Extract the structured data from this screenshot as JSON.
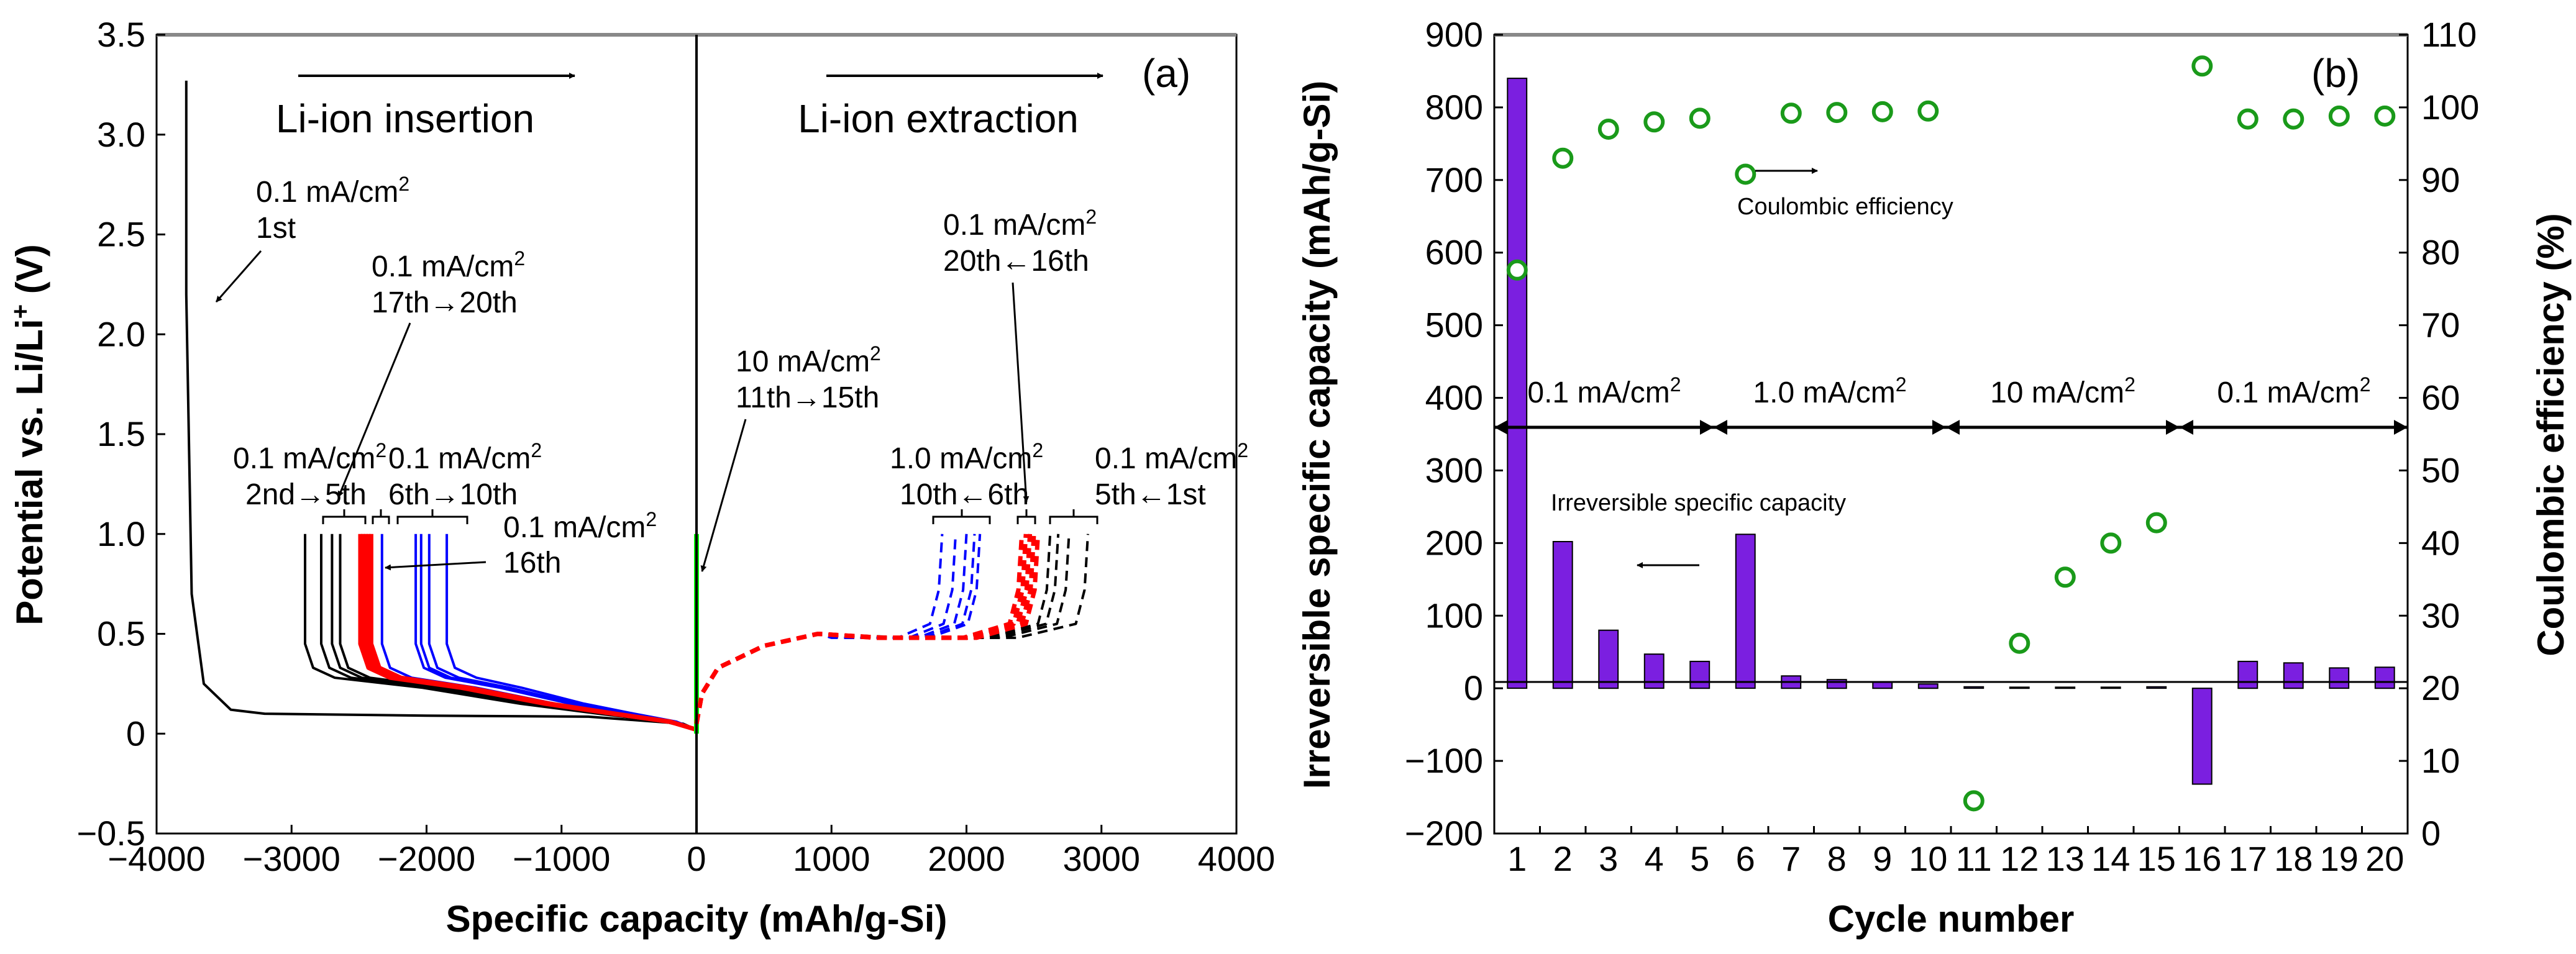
{
  "chart_data": [
    {
      "type": "line",
      "panel_label": "(a)",
      "xlabel": "Specific capacity (mAh/g-Si)",
      "ylabel": "Potential vs. Li/Li",
      "ylabel_sup": "+",
      "ylabel_unit": " (V)",
      "xlim": [
        -4000,
        4000
      ],
      "ylim": [
        -0.5,
        3.5
      ],
      "x_ticks": [
        -4000,
        -3000,
        -2000,
        -1000,
        0,
        1000,
        2000,
        3000,
        4000
      ],
      "x_tick_labels": [
        "−4000",
        "−3000",
        "−2000",
        "−1000",
        "0",
        "1000",
        "2000",
        "3000",
        "4000"
      ],
      "y_ticks": [
        -0.5,
        0,
        0.5,
        1.0,
        1.5,
        2.0,
        2.5,
        3.0,
        3.5
      ],
      "y_tick_labels": [
        "−0.5",
        "0",
        "0.5",
        "1.0",
        "1.5",
        "2.0",
        "2.5",
        "3.0",
        "3.5"
      ],
      "headers": {
        "insertion": "Li-ion insertion",
        "extraction": "Li-ion extraction"
      },
      "annotations": {
        "first": [
          "0.1 mA/cm",
          "1st"
        ],
        "c17_20": [
          "0.1 mA/cm",
          "17th→20th"
        ],
        "c2_5": [
          "0.1 mA/cm",
          "2nd→5th"
        ],
        "c6_10": [
          "0.1 mA/cm",
          "6th→10th"
        ],
        "c16": [
          "0.1 mA/cm",
          "16th"
        ],
        "c11_15": [
          "10 mA/cm",
          "11th→15th"
        ],
        "e20_16": [
          "0.1 mA/cm",
          "20th←16th"
        ],
        "e10_6": [
          "1.0 mA/cm",
          "10th←6th"
        ],
        "e5_1": [
          "0.1 mA/cm",
          "5th←1st"
        ],
        "sup": "2"
      },
      "series": [
        {
          "name": "1st insertion",
          "color": "#000000",
          "style": "solid",
          "x": [
            -3780,
            -3780,
            -3740,
            -3650,
            -3450,
            -3200,
            -2000,
            -800,
            -100,
            0
          ],
          "y": [
            3.27,
            2.2,
            0.7,
            0.25,
            0.12,
            0.1,
            0.09,
            0.085,
            0.05,
            0.02
          ]
        },
        {
          "name": "2nd-5th insertion",
          "color": "#000000",
          "style": "solid",
          "endpoints": [
            -2900,
            -2780,
            -2700,
            -2640
          ]
        },
        {
          "name": "6th-10th insertion",
          "color": "#0000ff",
          "style": "solid",
          "endpoints": [
            -2330,
            -2080,
            -2040,
            -1980,
            -1850
          ]
        },
        {
          "name": "16th-20th insertion",
          "color": "#ff0000",
          "style": "solid",
          "endpoints": [
            -2490,
            -2470,
            -2450,
            -2430,
            -2410
          ]
        },
        {
          "name": "11th-15th",
          "color": "#00ff00",
          "style": "solid",
          "x": [
            0,
            0
          ],
          "y": [
            0,
            1.0
          ]
        },
        {
          "name": "1st-5th extraction",
          "color": "#000000",
          "style": "dashed",
          "endpoints": [
            2620,
            2680,
            2760,
            2900
          ]
        },
        {
          "name": "6th-10th extraction",
          "color": "#0000ff",
          "style": "dashed",
          "endpoints": [
            1820,
            1920,
            2000,
            2060,
            2100
          ]
        },
        {
          "name": "16th-20th extraction",
          "color": "#ff0000",
          "style": "dashed",
          "endpoints": [
            2410,
            2440,
            2470,
            2500,
            2530
          ]
        }
      ]
    },
    {
      "type": "bar",
      "panel_label": "(b)",
      "xlabel": "Cycle number",
      "ylabel": "Irreversible specific capacity (mAh/g-Si)",
      "y2label": "Coulombic efficiency (%)",
      "categories": [
        "1",
        "2",
        "3",
        "4",
        "5",
        "6",
        "7",
        "8",
        "9",
        "10",
        "11",
        "12",
        "13",
        "14",
        "15",
        "16",
        "17",
        "18",
        "19",
        "20"
      ],
      "ylim": [
        -200,
        900
      ],
      "y2lim": [
        0,
        110
      ],
      "y_ticks": [
        -200,
        -100,
        0,
        100,
        200,
        300,
        400,
        500,
        600,
        700,
        800,
        900
      ],
      "y_tick_labels": [
        "−200",
        "−100",
        "0",
        "100",
        "200",
        "300",
        "400",
        "500",
        "600",
        "700",
        "800",
        "900"
      ],
      "y2_ticks": [
        0,
        10,
        20,
        30,
        40,
        50,
        60,
        70,
        80,
        90,
        100,
        110
      ],
      "y2_tick_labels": [
        "0",
        "10",
        "20",
        "30",
        "40",
        "50",
        "60",
        "70",
        "80",
        "90",
        "100",
        "110"
      ],
      "series": [
        {
          "name": "Irreversible specific capacity",
          "color": "#7b1fe0",
          "axis": "left",
          "values": [
            840,
            202,
            80,
            47,
            37,
            212,
            17,
            12,
            9,
            6,
            2,
            1.5,
            1.5,
            1.5,
            2,
            -132,
            37,
            35,
            28,
            29
          ]
        },
        {
          "name": "Coulombic efficiency",
          "color": "#1a9a1a",
          "axis": "right",
          "marker": "circle",
          "values": [
            77.6,
            93,
            97,
            98,
            98.5,
            90.8,
            99.2,
            99.3,
            99.4,
            99.5,
            4.5,
            26.2,
            35.3,
            40,
            42.8,
            105.7,
            98.4,
            98.4,
            98.8,
            98.8
          ]
        }
      ],
      "rate_labels": [
        "0.1 mA/cm",
        "1.0 mA/cm",
        "10 mA/cm",
        "0.1 mA/cm"
      ],
      "rate_sup": "2",
      "annotations": {
        "ce": "Coulombic efficiency",
        "irr": "Irreversible specific capacity"
      }
    }
  ]
}
